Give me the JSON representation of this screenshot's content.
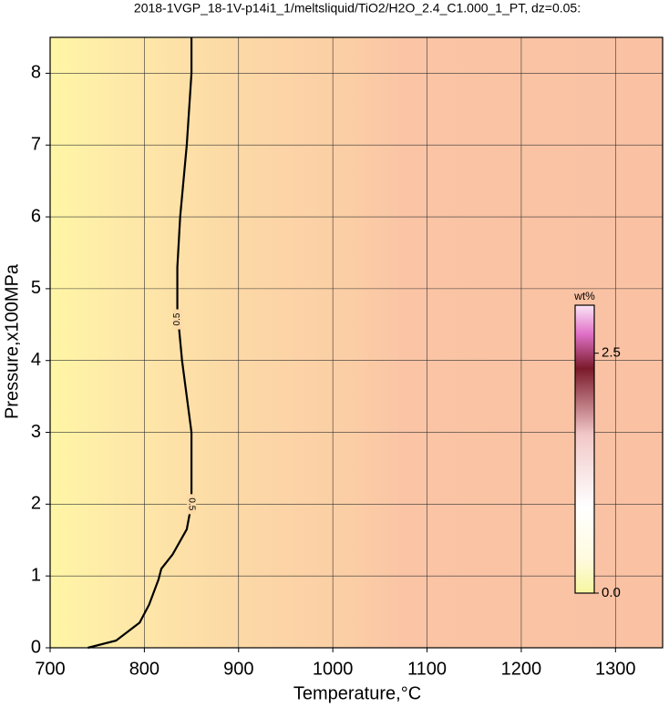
{
  "chart_data": {
    "type": "contour",
    "title": "2018-1VGP_18-1V-p14i1_1/meltsliquid/TiO2/H2O_2.4_C1.000_1_PT, dz=0.05:",
    "x_label": "Temperature,°C",
    "y_label": "Pressure,x100MPa",
    "xlim": [
      700,
      1350
    ],
    "xticks": [
      700,
      800,
      900,
      1000,
      1100,
      1200,
      1300
    ],
    "ylim": [
      0,
      8.5
    ],
    "yticks": [
      0,
      1,
      2,
      3,
      4,
      5,
      6,
      7,
      8
    ],
    "grid": true,
    "contours": [
      {
        "label": "0.5",
        "color": "#000000",
        "x": [
          740,
          770,
          795,
          805,
          815,
          818,
          830,
          845,
          850,
          850,
          847,
          840,
          835,
          835,
          838,
          845,
          850,
          850
        ],
        "y": [
          0,
          0.1,
          0.35,
          0.6,
          0.95,
          1.1,
          1.3,
          1.65,
          2,
          3,
          3.3,
          4,
          4.7,
          5.3,
          6,
          7,
          8,
          8.5
        ]
      }
    ],
    "colorbar": {
      "label": "wt%",
      "lim": [
        0,
        3
      ],
      "ticks": [
        {
          "value": 0,
          "label": "0.0"
        },
        2.5
      ]
    }
  }
}
